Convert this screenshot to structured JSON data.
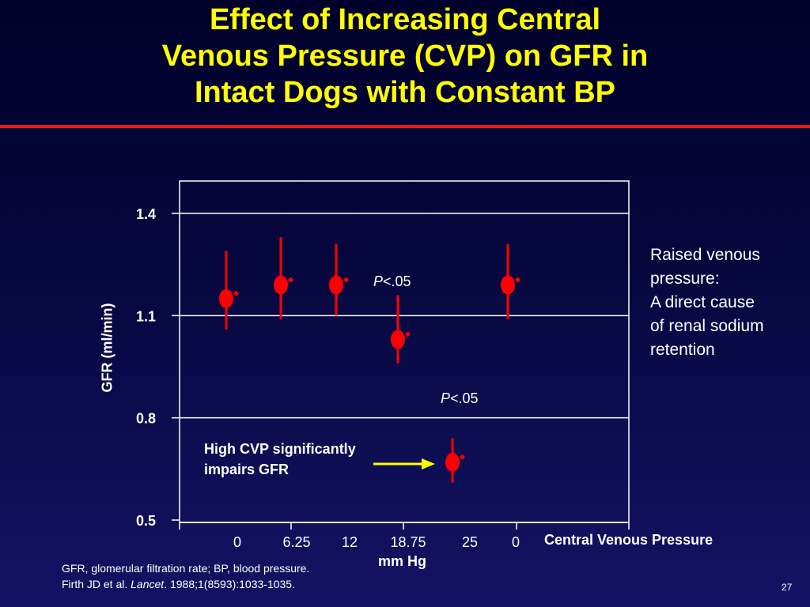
{
  "slide": {
    "title_lines": [
      "Effect of Increasing Central",
      "Venous Pressure (CVP) on GFR in",
      "Intact Dogs with Constant BP"
    ],
    "side_note_lines": [
      "Raised venous",
      "pressure:",
      "A direct cause",
      "of renal sodium",
      "retention"
    ],
    "arrow_label_lines": [
      "High CVP significantly",
      "impairs GFR"
    ],
    "p_annotations": [
      {
        "italic": "P",
        "rest": "<.05"
      },
      {
        "italic": "P",
        "rest": "<.05"
      }
    ],
    "footnote": {
      "line1": "GFR, glomerular filtration rate; BP, blood pressure.",
      "line2_pre": "Firth JD et al. ",
      "line2_journal": "Lancet",
      "line2_post": ". 1988;1(8593):1033-1035."
    },
    "slide_number": "27"
  },
  "chart_data": {
    "type": "scatter",
    "title": "",
    "xlabel": "Central Venous Pressure",
    "xlabel_unit": "mm Hg",
    "ylabel": "GFR (ml/min)",
    "ylim": [
      0.5,
      1.5
    ],
    "yticks": [
      1.4,
      1.1,
      0.8,
      0.5
    ],
    "ytick_labels": [
      "1.4",
      "1.1",
      "0.8",
      "0.5"
    ],
    "grid": true,
    "categories": [
      "0",
      "6.25",
      "12",
      "18.75",
      "25",
      "0"
    ],
    "values": [
      1.15,
      1.19,
      1.19,
      1.03,
      0.67,
      1.19
    ],
    "error_low": [
      1.06,
      1.09,
      1.1,
      0.96,
      0.61,
      1.09
    ],
    "error_high": [
      1.29,
      1.33,
      1.31,
      1.16,
      0.74,
      1.31
    ],
    "marker_color": "#ff0000",
    "gridline_color": "#ffffff",
    "arrow_color": "#ffff00"
  }
}
